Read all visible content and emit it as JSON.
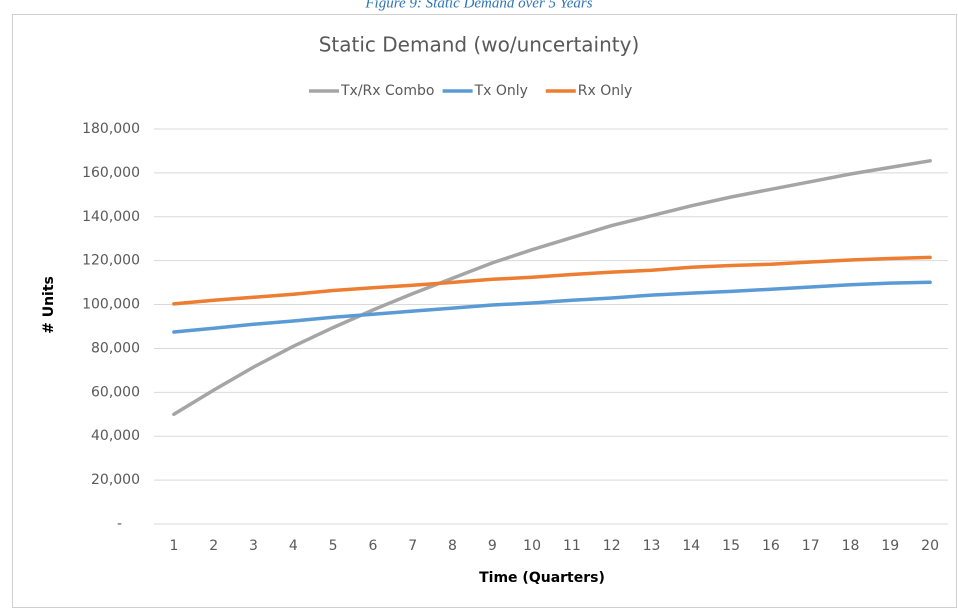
{
  "caption": "Figure 9: Static Demand over 5 Years",
  "chart_data": {
    "type": "line",
    "title": "Static Demand (wo/uncertainty)",
    "y_label": "# Units",
    "x_label": "Time (Quarters)",
    "categories": [
      "1",
      "2",
      "3",
      "4",
      "5",
      "6",
      "7",
      "8",
      "9",
      "10",
      "11",
      "12",
      "13",
      "14",
      "15",
      "16",
      "17",
      "18",
      "19",
      "20"
    ],
    "series": [
      {
        "name": "Tx/Rx Combo",
        "color": "#a5a5a5",
        "values": [
          50000,
          61000,
          71500,
          81000,
          89500,
          97500,
          105000,
          112000,
          119000,
          125000,
          130500,
          136000,
          140500,
          145000,
          149000,
          152500,
          156000,
          159500,
          162500,
          165500
        ]
      },
      {
        "name": "Tx Only",
        "color": "#5b9bd5",
        "values": [
          87500,
          89200,
          91000,
          92500,
          94200,
          95600,
          97000,
          98400,
          99800,
          100700,
          102000,
          103000,
          104300,
          105200,
          106000,
          107000,
          108000,
          109000,
          109800,
          110200
        ]
      },
      {
        "name": "Rx Only",
        "color": "#ed7d31",
        "values": [
          100300,
          102000,
          103300,
          104700,
          106400,
          107700,
          108800,
          110100,
          111500,
          112400,
          113700,
          114800,
          115600,
          117000,
          117800,
          118400,
          119400,
          120300,
          121000,
          121500
        ]
      }
    ],
    "ylim": [
      0,
      180000
    ],
    "yticks": [
      {
        "value": 0,
        "label": "-"
      },
      {
        "value": 20000,
        "label": "20,000"
      },
      {
        "value": 40000,
        "label": "40,000"
      },
      {
        "value": 60000,
        "label": "60,000"
      },
      {
        "value": 80000,
        "label": "80,000"
      },
      {
        "value": 100000,
        "label": "100,000"
      },
      {
        "value": 120000,
        "label": "120,000"
      },
      {
        "value": 140000,
        "label": "140,000"
      },
      {
        "value": 160000,
        "label": "160,000"
      },
      {
        "value": 180000,
        "label": "180,000"
      }
    ],
    "grid": true,
    "legend": "top"
  }
}
